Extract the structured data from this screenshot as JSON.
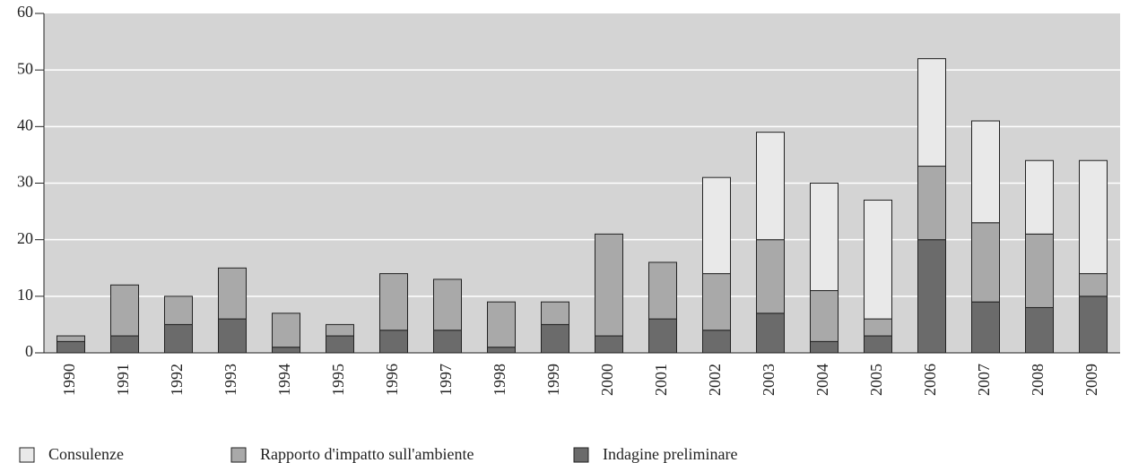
{
  "chart_data": {
    "type": "stacked_bar",
    "categories": [
      "1990",
      "1991",
      "1992",
      "1993",
      "1994",
      "1995",
      "1996",
      "1997",
      "1998",
      "1999",
      "2000",
      "2001",
      "2002",
      "2003",
      "2004",
      "2005",
      "2006",
      "2007",
      "2008",
      "2009"
    ],
    "series": [
      {
        "name": "Indagine preliminare",
        "color": "#6b6b6b",
        "values": [
          2,
          3,
          5,
          6,
          1,
          3,
          4,
          4,
          1,
          5,
          3,
          6,
          4,
          7,
          2,
          3,
          20,
          9,
          8,
          10
        ]
      },
      {
        "name": "Rapporto d'impatto sull'ambiente",
        "color": "#a9a9a9",
        "values": [
          1,
          9,
          5,
          9,
          6,
          2,
          10,
          9,
          8,
          4,
          18,
          10,
          10,
          13,
          9,
          3,
          13,
          14,
          13,
          4
        ]
      },
      {
        "name": "Consulenze",
        "color": "#e9e9e9",
        "values": [
          0,
          0,
          0,
          0,
          0,
          0,
          0,
          0,
          0,
          0,
          0,
          0,
          17,
          19,
          19,
          21,
          19,
          18,
          13,
          20
        ]
      }
    ],
    "ylim": [
      0,
      60
    ],
    "yticks": [
      0,
      10,
      20,
      30,
      40,
      50,
      60
    ],
    "grid": true,
    "legend": "bottom-left"
  }
}
